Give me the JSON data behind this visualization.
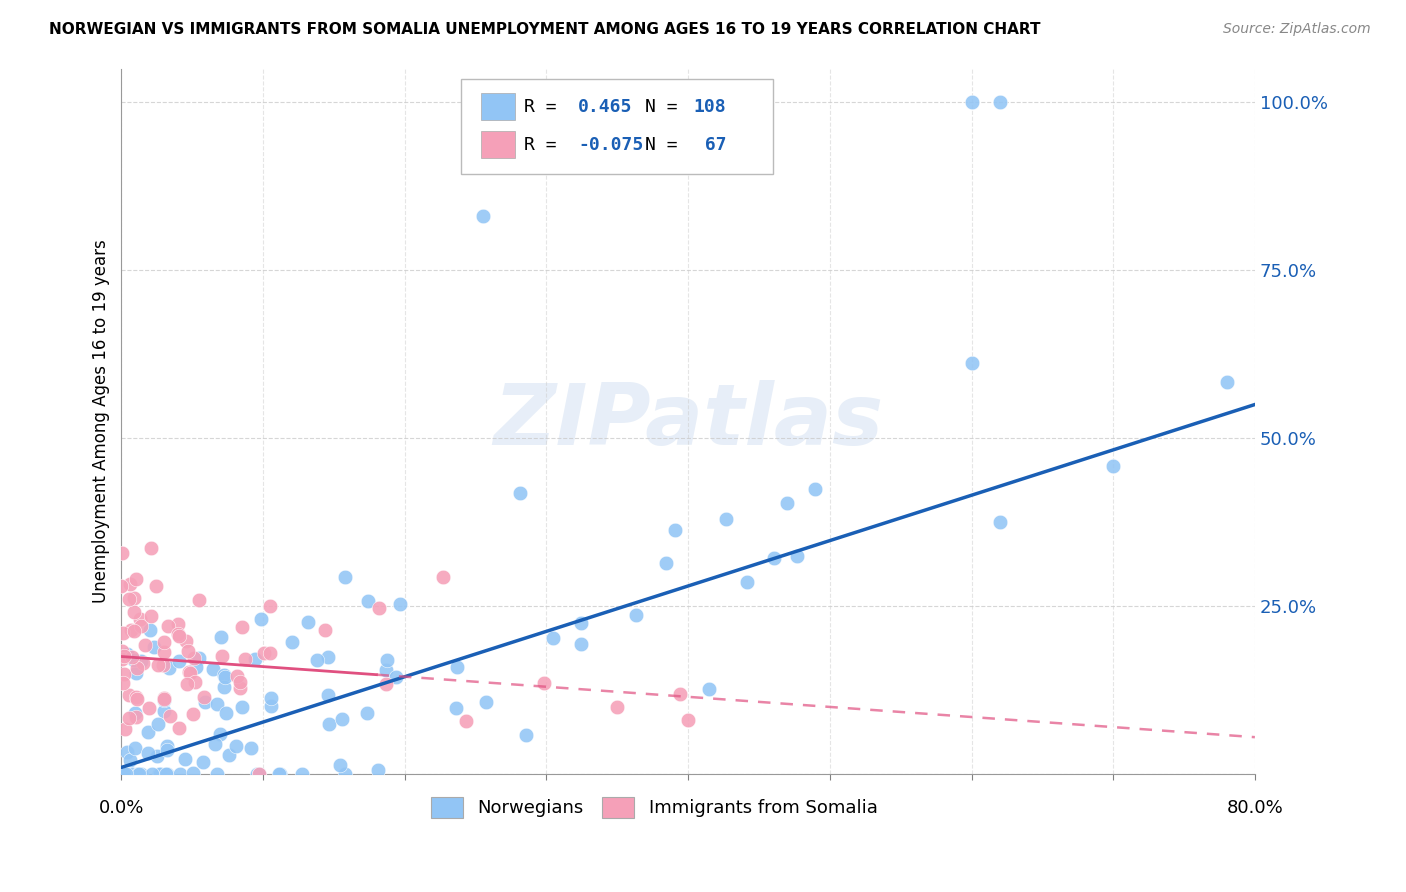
{
  "title": "NORWEGIAN VS IMMIGRANTS FROM SOMALIA UNEMPLOYMENT AMONG AGES 16 TO 19 YEARS CORRELATION CHART",
  "source": "Source: ZipAtlas.com",
  "ylabel": "Unemployment Among Ages 16 to 19 years",
  "x_range": [
    0.0,
    0.8
  ],
  "y_range": [
    0.0,
    1.05
  ],
  "y_ticks": [
    0.0,
    0.25,
    0.5,
    0.75,
    1.0
  ],
  "y_tick_labels": [
    "",
    "25.0%",
    "50.0%",
    "75.0%",
    "100.0%"
  ],
  "norwegian_color": "#92c5f5",
  "somalia_color": "#f5a0b8",
  "norwegian_line_color": "#1a5fb5",
  "somalia_line_color": "#e05080",
  "watermark": "ZIPatlas",
  "background_color": "#ffffff",
  "nor_trend_x0": 0.0,
  "nor_trend_y0": 0.01,
  "nor_trend_x1": 0.8,
  "nor_trend_y1": 0.55,
  "som_trend_x0": 0.0,
  "som_trend_y0": 0.175,
  "som_trend_x1": 0.8,
  "som_trend_y1": 0.055
}
